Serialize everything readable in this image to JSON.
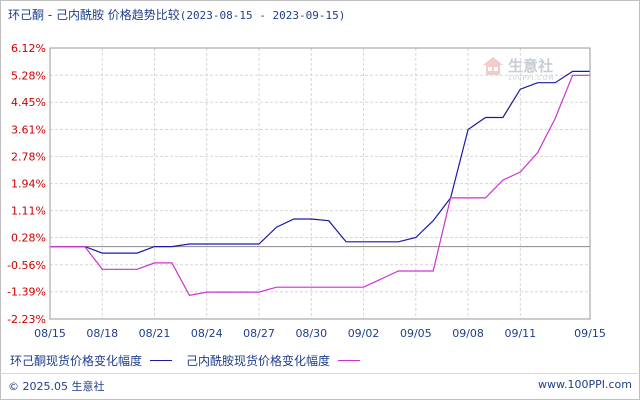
{
  "title": {
    "main": "环己酮 - 己内酰胺 价格趋势比较",
    "range": "(2023-08-15 - 2023-09-15)"
  },
  "watermark": {
    "text": "生意社",
    "sub": "100PPI.COM"
  },
  "legend": [
    {
      "label": "环己酮现货价格变化幅度",
      "color": "#1a1aa6"
    },
    {
      "label": "己内酰胺现货价格变化幅度",
      "color": "#cc33cc"
    }
  ],
  "footer": {
    "left": "© 2025.05 生意社",
    "right": "www.100PPI.com"
  },
  "chart_data": {
    "type": "line",
    "x": [
      "08/15",
      "08/16",
      "08/17",
      "08/18",
      "08/19",
      "08/20",
      "08/21",
      "08/22",
      "08/23",
      "08/24",
      "08/25",
      "08/26",
      "08/27",
      "08/28",
      "08/29",
      "08/30",
      "08/31",
      "09/01",
      "09/02",
      "09/03",
      "09/04",
      "09/05",
      "09/06",
      "09/07",
      "09/08",
      "09/09",
      "09/10",
      "09/11",
      "09/12",
      "09/13",
      "09/14",
      "09/15"
    ],
    "x_tick_labels": [
      "08/15",
      "08/18",
      "08/21",
      "08/24",
      "08/27",
      "08/30",
      "09/02",
      "09/05",
      "09/08",
      "09/11",
      "09/15"
    ],
    "y_tick_labels": [
      "6.12%",
      "5.28%",
      "4.45%",
      "3.61%",
      "2.78%",
      "1.94%",
      "1.11%",
      "0.28%",
      "-0.56%",
      "-1.39%",
      "-2.23%"
    ],
    "y_ticks": [
      6.12,
      5.28,
      4.45,
      3.61,
      2.78,
      1.94,
      1.11,
      0.28,
      -0.56,
      -1.39,
      -2.23
    ],
    "ylim": [
      -2.23,
      6.12
    ],
    "grid": true,
    "series": [
      {
        "name": "环己酮现货价格变化幅度",
        "color": "#1a1aa6",
        "values": [
          0,
          0,
          0,
          -0.2,
          -0.2,
          -0.2,
          0,
          0,
          0.08,
          0.08,
          0.08,
          0.08,
          0.08,
          0.6,
          0.85,
          0.85,
          0.8,
          0.15,
          0.15,
          0.15,
          0.15,
          0.28,
          0.8,
          1.5,
          3.61,
          3.98,
          3.98,
          4.85,
          5.05,
          5.05,
          5.4,
          5.4
        ]
      },
      {
        "name": "己内酰胺现货价格变化幅度",
        "color": "#cc33cc",
        "values": [
          0,
          0,
          0,
          -0.7,
          -0.7,
          -0.7,
          -0.5,
          -0.5,
          -1.5,
          -1.4,
          -1.4,
          -1.4,
          -1.4,
          -1.25,
          -1.25,
          -1.25,
          -1.25,
          -1.25,
          -1.25,
          -1.0,
          -0.75,
          -0.75,
          -0.75,
          1.5,
          1.5,
          1.5,
          2.05,
          2.3,
          2.9,
          3.95,
          5.28,
          5.28
        ]
      }
    ]
  }
}
